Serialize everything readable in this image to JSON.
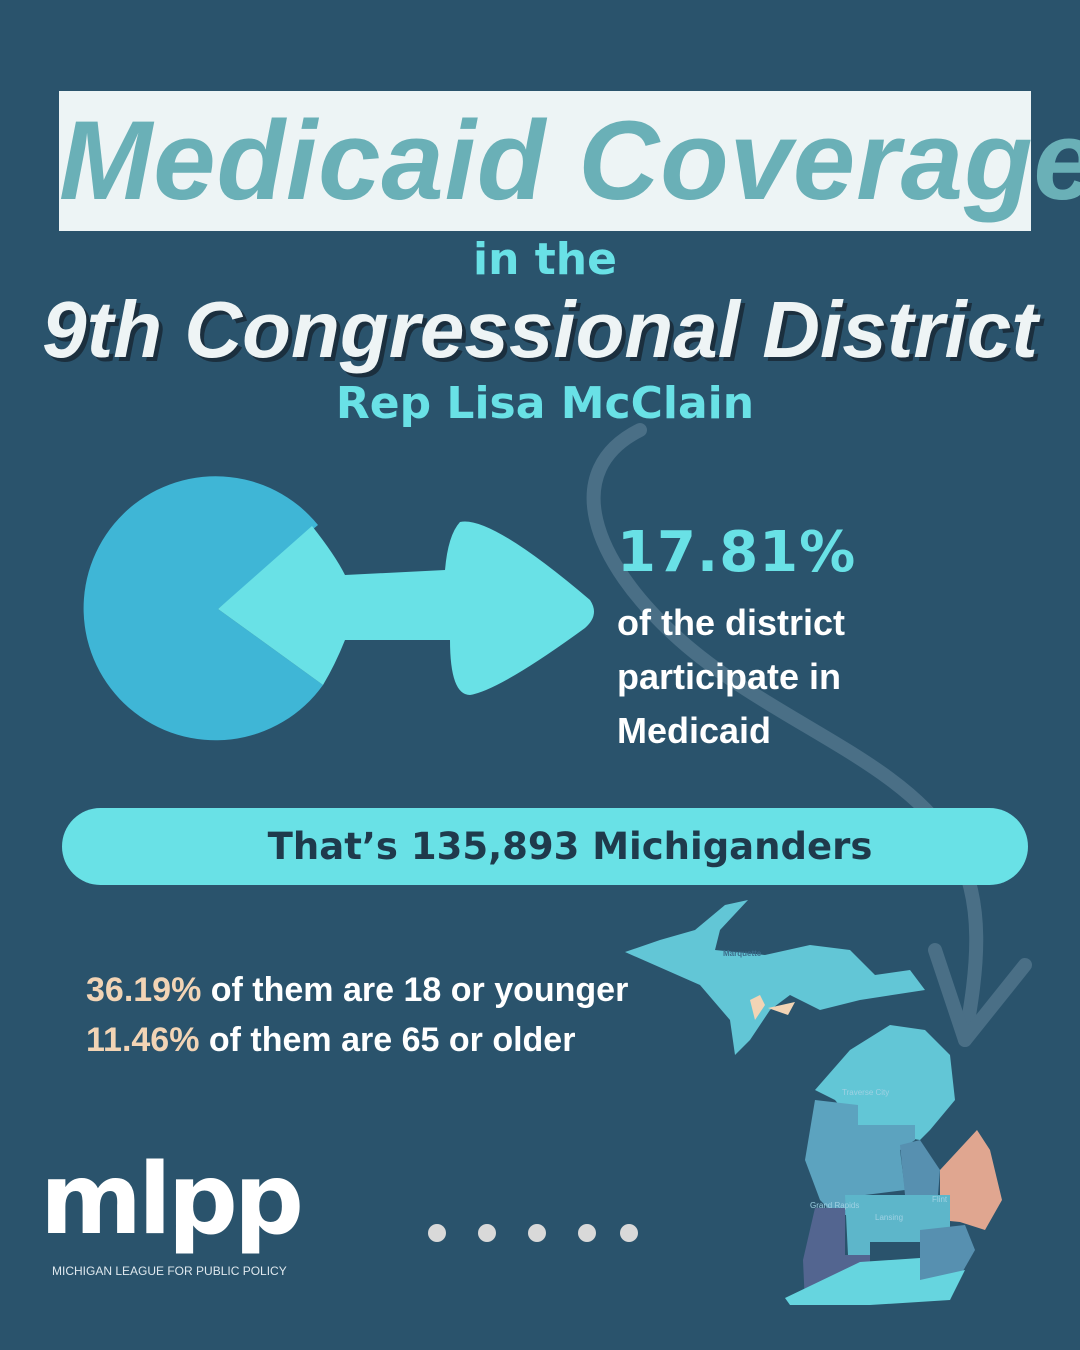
{
  "header": {
    "title": "Medicaid Coverage",
    "subtitle": "in the",
    "district": "9th Congressional District",
    "representative": "Rep Lisa McClain"
  },
  "stat": {
    "percent": "17.81%",
    "description": "of the district participate in Medicaid",
    "pie_fraction": 0.1781
  },
  "banner": {
    "text": "That’s 135,893 Michiganders"
  },
  "age_stats": [
    {
      "value": "36.19%",
      "text": " of them are 18 or younger"
    },
    {
      "value": "11.46%",
      "text": " of them are 65 or older"
    }
  ],
  "map": {
    "labels": [
      "Marquette",
      "Traverse City",
      "Grand Rapids",
      "Lansing",
      "Flint"
    ]
  },
  "logo": {
    "word": "mlpp",
    "org": "MICHIGAN LEAGUE FOR PUBLIC POLICY"
  },
  "pagination": {
    "count": 5
  },
  "colors": {
    "background": "#2a536c",
    "accent": "#69e1e6",
    "pie": "#3fb6d6",
    "highlight": "#e0a690"
  }
}
